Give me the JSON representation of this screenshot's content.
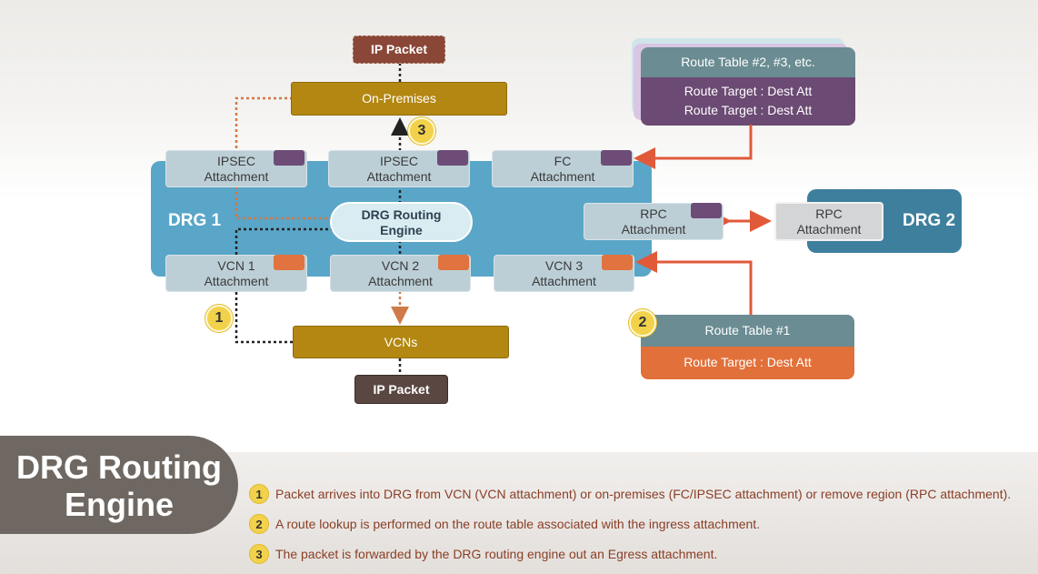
{
  "diagram": {
    "ip_packet_top": "IP Packet",
    "on_premises": "On-Premises",
    "drg1_label": "DRG 1",
    "drg2_label": "DRG 2",
    "engine_line1": "DRG Routing",
    "engine_line2": "Engine",
    "attachments": {
      "ipsec1": {
        "name": "IPSEC",
        "type": "Attachment"
      },
      "ipsec2": {
        "name": "IPSEC",
        "type": "Attachment"
      },
      "fc": {
        "name": "FC",
        "type": "Attachment"
      },
      "rpc1": {
        "name": "RPC",
        "type": "Attachment"
      },
      "rpc2": {
        "name": "RPC",
        "type": "Attachment"
      },
      "vcn1": {
        "name": "VCN 1",
        "type": "Attachment"
      },
      "vcn2": {
        "name": "VCN 2",
        "type": "Attachment"
      },
      "vcn3": {
        "name": "VCN 3",
        "type": "Attachment"
      }
    },
    "vcns": "VCNs",
    "ip_packet_bottom": "IP Packet",
    "route_table_multi": {
      "title": "Route Table #2, #3, etc.",
      "row1": "Route Target : Dest Att",
      "row2": "Route Target : Dest Att"
    },
    "route_table_1": {
      "title": "Route Table #1",
      "row1": "Route Target : Dest Att"
    },
    "markers": {
      "one": "1",
      "two": "2",
      "three": "3"
    }
  },
  "title": {
    "line1": "DRG Routing",
    "line2": "Engine"
  },
  "legend": [
    {
      "num": "1",
      "text": "Packet arrives into DRG from VCN (VCN attachment) or on-premises (FC/IPSEC attachment) or remove region (RPC attachment)."
    },
    {
      "num": "2",
      "text": "A route lookup is performed on the route table associated with the ingress attachment."
    },
    {
      "num": "3",
      "text": "The packet is forwarded by the DRG routing engine out an Egress attachment."
    }
  ],
  "colors": {
    "drg1": "#5aa6c8",
    "drg2": "#3e7f9e",
    "gold": "#b38712",
    "purple": "#6b4a73",
    "orange": "#e2703a",
    "arrow": "#e05a3a"
  }
}
